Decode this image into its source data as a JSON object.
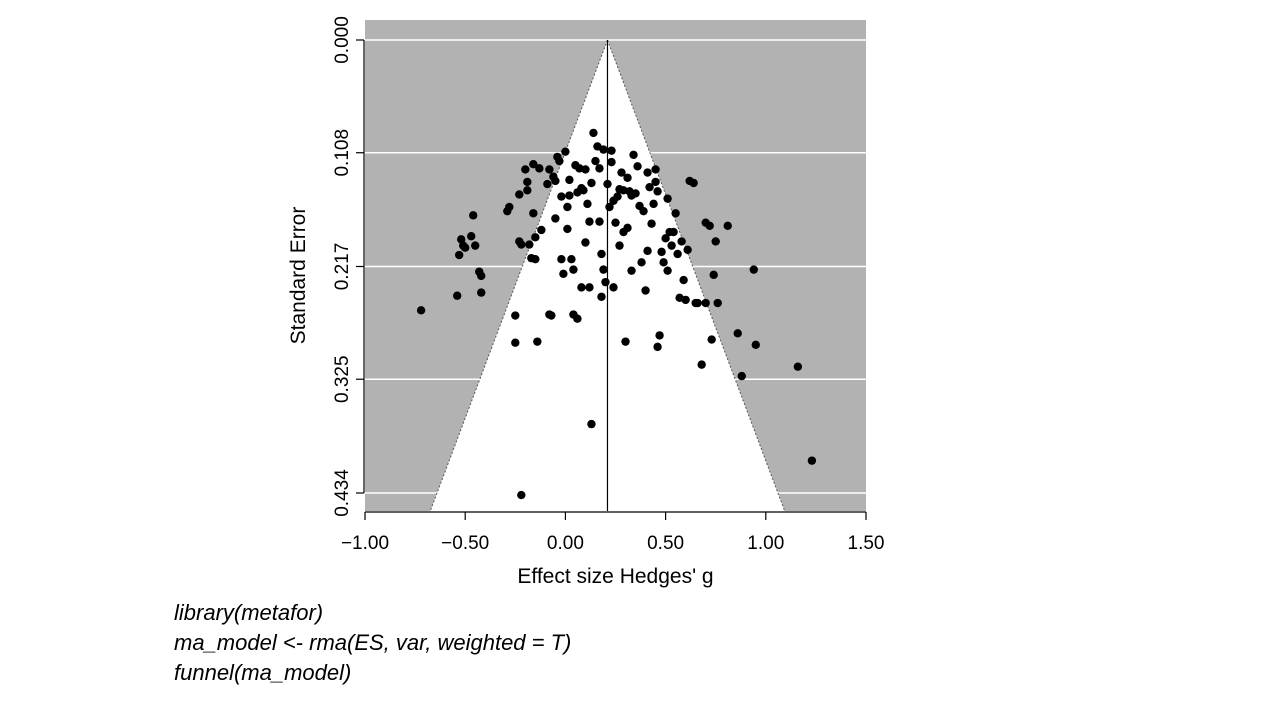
{
  "chart_data": {
    "type": "scatter",
    "subtype": "funnel",
    "title": "",
    "xlabel": "Effect size Hedges' g",
    "ylabel": "Standard Error",
    "xlim": [
      -1.0,
      1.5
    ],
    "ylim": [
      0.434,
      0.0
    ],
    "y_inverted": true,
    "x_ticks": [
      "−1.00",
      "−0.50",
      "0.00",
      "0.50",
      "1.00",
      "1.50"
    ],
    "x_tick_values": [
      -1.0,
      -0.5,
      0.0,
      0.5,
      1.0,
      1.5
    ],
    "y_ticks": [
      "0.000",
      "0.108",
      "0.217",
      "0.325",
      "0.434"
    ],
    "y_tick_values": [
      0.0,
      0.108,
      0.217,
      0.325,
      0.434
    ],
    "grid": "horizontal",
    "estimate": 0.21,
    "funnel_multiplier": 1.96,
    "colors": {
      "background": "#b2b2b2",
      "funnel": "#ffffff",
      "points": "#000000",
      "grid": "#ffffff"
    },
    "points": [
      [
        -0.72,
        0.259
      ],
      [
        -0.54,
        0.245
      ],
      [
        -0.53,
        0.206
      ],
      [
        -0.52,
        0.191
      ],
      [
        -0.51,
        0.197
      ],
      [
        -0.5,
        0.199
      ],
      [
        -0.47,
        0.188
      ],
      [
        -0.46,
        0.168
      ],
      [
        -0.45,
        0.197
      ],
      [
        -0.43,
        0.222
      ],
      [
        -0.42,
        0.226
      ],
      [
        -0.42,
        0.242
      ],
      [
        -0.29,
        0.164
      ],
      [
        -0.28,
        0.16
      ],
      [
        -0.25,
        0.264
      ],
      [
        -0.25,
        0.29
      ],
      [
        -0.23,
        0.148
      ],
      [
        -0.23,
        0.193
      ],
      [
        -0.22,
        0.196
      ],
      [
        -0.22,
        0.436
      ],
      [
        -0.2,
        0.124
      ],
      [
        -0.19,
        0.136
      ],
      [
        -0.19,
        0.144
      ],
      [
        -0.18,
        0.196
      ],
      [
        -0.17,
        0.209
      ],
      [
        -0.16,
        0.119
      ],
      [
        -0.16,
        0.166
      ],
      [
        -0.15,
        0.189
      ],
      [
        -0.15,
        0.21
      ],
      [
        -0.14,
        0.289
      ],
      [
        -0.13,
        0.123
      ],
      [
        -0.12,
        0.182
      ],
      [
        -0.09,
        0.138
      ],
      [
        -0.08,
        0.124
      ],
      [
        -0.08,
        0.263
      ],
      [
        -0.07,
        0.264
      ],
      [
        -0.06,
        0.131
      ],
      [
        -0.05,
        0.135
      ],
      [
        -0.05,
        0.171
      ],
      [
        -0.04,
        0.112
      ],
      [
        -0.03,
        0.116
      ],
      [
        -0.02,
        0.15
      ],
      [
        -0.02,
        0.21
      ],
      [
        -0.01,
        0.224
      ],
      [
        0.0,
        0.107
      ],
      [
        0.01,
        0.16
      ],
      [
        0.01,
        0.181
      ],
      [
        0.02,
        0.134
      ],
      [
        0.02,
        0.149
      ],
      [
        0.03,
        0.21
      ],
      [
        0.04,
        0.22
      ],
      [
        0.04,
        0.263
      ],
      [
        0.05,
        0.12
      ],
      [
        0.06,
        0.146
      ],
      [
        0.06,
        0.267
      ],
      [
        0.07,
        0.123
      ],
      [
        0.08,
        0.142
      ],
      [
        0.08,
        0.237
      ],
      [
        0.09,
        0.144
      ],
      [
        0.1,
        0.124
      ],
      [
        0.1,
        0.194
      ],
      [
        0.11,
        0.157
      ],
      [
        0.12,
        0.237
      ],
      [
        0.12,
        0.174
      ],
      [
        0.13,
        0.137
      ],
      [
        0.13,
        0.368
      ],
      [
        0.14,
        0.089
      ],
      [
        0.15,
        0.116
      ],
      [
        0.16,
        0.102
      ],
      [
        0.17,
        0.123
      ],
      [
        0.17,
        0.174
      ],
      [
        0.18,
        0.205
      ],
      [
        0.18,
        0.246
      ],
      [
        0.19,
        0.105
      ],
      [
        0.19,
        0.22
      ],
      [
        0.2,
        0.232
      ],
      [
        0.21,
        0.138
      ],
      [
        0.22,
        0.16
      ],
      [
        0.23,
        0.106
      ],
      [
        0.23,
        0.117
      ],
      [
        0.24,
        0.154
      ],
      [
        0.24,
        0.237
      ],
      [
        0.25,
        0.175
      ],
      [
        0.26,
        0.15
      ],
      [
        0.27,
        0.143
      ],
      [
        0.27,
        0.197
      ],
      [
        0.28,
        0.127
      ],
      [
        0.29,
        0.144
      ],
      [
        0.29,
        0.184
      ],
      [
        0.3,
        0.289
      ],
      [
        0.31,
        0.132
      ],
      [
        0.31,
        0.18
      ],
      [
        0.32,
        0.145
      ],
      [
        0.33,
        0.149
      ],
      [
        0.33,
        0.221
      ],
      [
        0.34,
        0.11
      ],
      [
        0.35,
        0.147
      ],
      [
        0.36,
        0.121
      ],
      [
        0.37,
        0.159
      ],
      [
        0.38,
        0.213
      ],
      [
        0.39,
        0.164
      ],
      [
        0.4,
        0.24
      ],
      [
        0.41,
        0.127
      ],
      [
        0.41,
        0.202
      ],
      [
        0.42,
        0.141
      ],
      [
        0.43,
        0.176
      ],
      [
        0.44,
        0.157
      ],
      [
        0.45,
        0.124
      ],
      [
        0.45,
        0.136
      ],
      [
        0.46,
        0.145
      ],
      [
        0.46,
        0.294
      ],
      [
        0.47,
        0.283
      ],
      [
        0.48,
        0.203
      ],
      [
        0.49,
        0.213
      ],
      [
        0.5,
        0.19
      ],
      [
        0.51,
        0.152
      ],
      [
        0.51,
        0.221
      ],
      [
        0.52,
        0.184
      ],
      [
        0.53,
        0.197
      ],
      [
        0.54,
        0.184
      ],
      [
        0.55,
        0.166
      ],
      [
        0.56,
        0.205
      ],
      [
        0.57,
        0.247
      ],
      [
        0.58,
        0.193
      ],
      [
        0.59,
        0.23
      ],
      [
        0.6,
        0.249
      ],
      [
        0.61,
        0.201
      ],
      [
        0.62,
        0.135
      ],
      [
        0.64,
        0.137
      ],
      [
        0.65,
        0.252
      ],
      [
        0.66,
        0.252
      ],
      [
        0.68,
        0.311
      ],
      [
        0.7,
        0.252
      ],
      [
        0.7,
        0.175
      ],
      [
        0.72,
        0.178
      ],
      [
        0.73,
        0.287
      ],
      [
        0.74,
        0.225
      ],
      [
        0.75,
        0.193
      ],
      [
        0.76,
        0.252
      ],
      [
        0.81,
        0.178
      ],
      [
        0.86,
        0.281
      ],
      [
        0.88,
        0.322
      ],
      [
        0.94,
        0.22
      ],
      [
        0.95,
        0.292
      ],
      [
        1.16,
        0.313
      ],
      [
        1.23,
        0.403
      ]
    ]
  },
  "code": {
    "lines": [
      "library(metafor)",
      "ma_model <- rma(ES, var, weighted = T)",
      "funnel(ma_model)"
    ]
  }
}
